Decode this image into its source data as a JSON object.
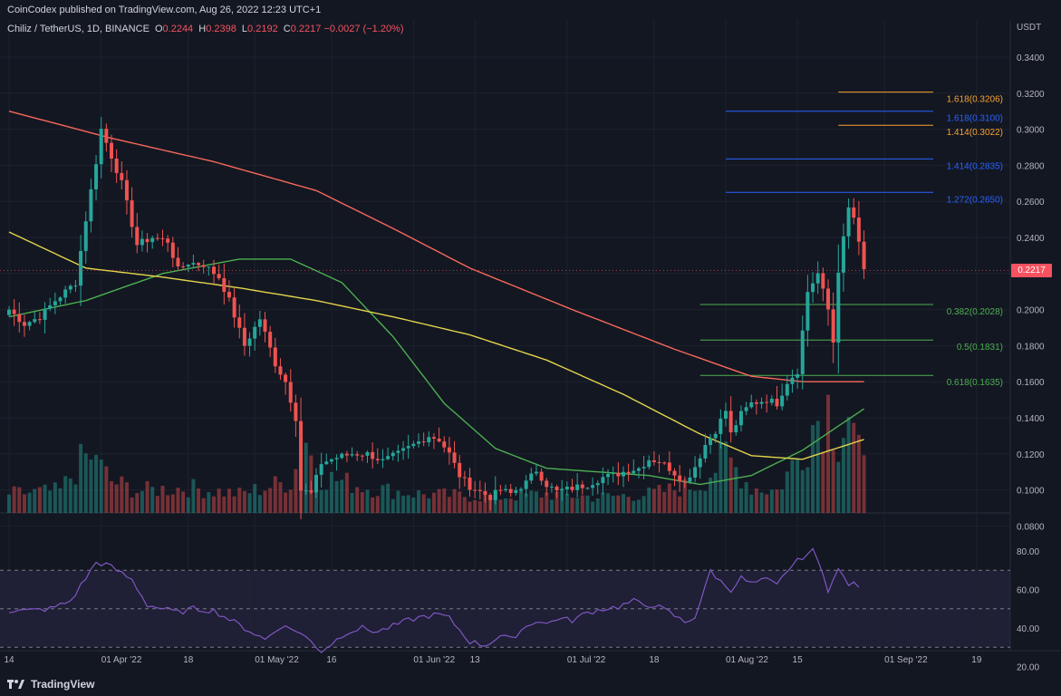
{
  "header": {
    "published": "CoinCodex published on TradingView.com, Aug 26, 2022 12:23 UTC+1"
  },
  "legend": {
    "symbol": "Chiliz / TetherUS, 1D, BINANCE",
    "open_label": "O",
    "open": "0.2244",
    "high_label": "H",
    "high": "0.2398",
    "low_label": "L",
    "low": "0.2192",
    "close_label": "C",
    "close": "0.2217",
    "change": "−0.0027 (−1.20%)"
  },
  "footer": {
    "brand": "TradingView"
  },
  "colors": {
    "up": "#26a69a",
    "down": "#ef5350",
    "ma200": "#f7685b",
    "ma100": "#e3d44c",
    "ma50": "#4caf50",
    "rsi": "#7e57c2",
    "fib_blue": "#2962ff",
    "fib_orange": "#f7a233",
    "fib_green": "#4caf50"
  },
  "chart_data": {
    "type": "candlestick",
    "currency": "USDT",
    "last_price": "0.2217",
    "price_ticks": [
      "0.3400",
      "0.3200",
      "0.3000",
      "0.2800",
      "0.2600",
      "0.2400",
      "0.2200",
      "0.2000",
      "0.1800",
      "0.1600",
      "0.1400",
      "0.1200",
      "0.1000",
      "0.0800"
    ],
    "ylim": [
      0.08,
      0.34
    ],
    "rsi_ticks": [
      "80.00",
      "60.00",
      "40.00",
      "20.00"
    ],
    "rsi_levels": [
      70,
      50,
      30
    ],
    "x_ticks": [
      {
        "label": "14",
        "day": 0
      },
      {
        "label": "01 Apr '22",
        "day": 18
      },
      {
        "label": "18",
        "day": 35
      },
      {
        "label": "01 May '22",
        "day": 48
      },
      {
        "label": "16",
        "day": 63
      },
      {
        "label": "01 Jun '22",
        "day": 79
      },
      {
        "label": "13",
        "day": 91
      },
      {
        "label": "01 Jul '22",
        "day": 109
      },
      {
        "label": "18",
        "day": 126
      },
      {
        "label": "01 Aug '22",
        "day": 140
      },
      {
        "label": "15",
        "day": 154
      },
      {
        "label": "01 Sep '22",
        "day": 171
      },
      {
        "label": "19",
        "day": 189
      }
    ],
    "fib_levels": [
      {
        "label": "1.618(0.3206)",
        "value": 0.3206,
        "color": "orange",
        "start_day": 162
      },
      {
        "label": "1.618(0.3100)",
        "value": 0.31,
        "color": "blue",
        "start_day": 140
      },
      {
        "label": "1.414(0.3022)",
        "value": 0.3022,
        "color": "orange",
        "start_day": 162
      },
      {
        "label": "1.414(0.2835)",
        "value": 0.2835,
        "color": "blue",
        "start_day": 140
      },
      {
        "label": "1.272(0.2650)",
        "value": 0.265,
        "color": "blue",
        "start_day": 140
      },
      {
        "label": "0.382(0.2028)",
        "value": 0.2028,
        "color": "green",
        "start_day": 135
      },
      {
        "label": "0.5(0.1831)",
        "value": 0.1831,
        "color": "green",
        "start_day": 135
      },
      {
        "label": "0.618(0.1635)",
        "value": 0.1635,
        "color": "green",
        "start_day": 135
      }
    ],
    "close_anchors": [
      [
        0,
        0.2
      ],
      [
        3,
        0.192
      ],
      [
        6,
        0.196
      ],
      [
        9,
        0.205
      ],
      [
        11,
        0.21
      ],
      [
        13,
        0.215
      ],
      [
        15,
        0.25
      ],
      [
        17,
        0.282
      ],
      [
        18,
        0.3
      ],
      [
        20,
        0.285
      ],
      [
        22,
        0.27
      ],
      [
        25,
        0.236
      ],
      [
        28,
        0.24
      ],
      [
        31,
        0.238
      ],
      [
        33,
        0.222
      ],
      [
        35,
        0.226
      ],
      [
        38,
        0.225
      ],
      [
        41,
        0.218
      ],
      [
        43,
        0.205
      ],
      [
        46,
        0.18
      ],
      [
        49,
        0.195
      ],
      [
        52,
        0.17
      ],
      [
        54,
        0.16
      ],
      [
        56,
        0.14
      ],
      [
        57,
        0.1
      ],
      [
        59,
        0.098
      ],
      [
        61,
        0.115
      ],
      [
        64,
        0.118
      ],
      [
        67,
        0.12
      ],
      [
        70,
        0.12
      ],
      [
        73,
        0.116
      ],
      [
        76,
        0.12
      ],
      [
        79,
        0.125
      ],
      [
        82,
        0.13
      ],
      [
        84,
        0.128
      ],
      [
        86,
        0.12
      ],
      [
        88,
        0.108
      ],
      [
        90,
        0.102
      ],
      [
        92,
        0.099
      ],
      [
        94,
        0.096
      ],
      [
        96,
        0.1
      ],
      [
        98,
        0.098
      ],
      [
        101,
        0.104
      ],
      [
        103,
        0.111
      ],
      [
        105,
        0.103
      ],
      [
        107,
        0.099
      ],
      [
        110,
        0.101
      ],
      [
        113,
        0.103
      ],
      [
        116,
        0.107
      ],
      [
        118,
        0.108
      ],
      [
        121,
        0.111
      ],
      [
        123,
        0.112
      ],
      [
        125,
        0.117
      ],
      [
        127,
        0.116
      ],
      [
        129,
        0.112
      ],
      [
        132,
        0.104
      ],
      [
        134,
        0.113
      ],
      [
        136,
        0.125
      ],
      [
        138,
        0.133
      ],
      [
        140,
        0.144
      ],
      [
        141,
        0.131
      ],
      [
        143,
        0.142
      ],
      [
        145,
        0.148
      ],
      [
        148,
        0.15
      ],
      [
        150,
        0.148
      ],
      [
        152,
        0.16
      ],
      [
        154,
        0.166
      ],
      [
        156,
        0.21
      ],
      [
        158,
        0.22
      ],
      [
        160,
        0.2
      ],
      [
        161,
        0.182
      ],
      [
        162,
        0.222
      ],
      [
        164,
        0.256
      ],
      [
        165,
        0.251
      ],
      [
        166,
        0.236
      ],
      [
        167,
        0.2217
      ]
    ],
    "ma200_anchors": [
      [
        0,
        0.31
      ],
      [
        20,
        0.295
      ],
      [
        40,
        0.282
      ],
      [
        60,
        0.266
      ],
      [
        75,
        0.245
      ],
      [
        90,
        0.223
      ],
      [
        110,
        0.2
      ],
      [
        130,
        0.178
      ],
      [
        145,
        0.163
      ],
      [
        155,
        0.16
      ],
      [
        167,
        0.16
      ]
    ],
    "ma100_anchors": [
      [
        0,
        0.243
      ],
      [
        15,
        0.223
      ],
      [
        30,
        0.218
      ],
      [
        45,
        0.212
      ],
      [
        60,
        0.205
      ],
      [
        75,
        0.196
      ],
      [
        90,
        0.186
      ],
      [
        105,
        0.172
      ],
      [
        120,
        0.153
      ],
      [
        135,
        0.131
      ],
      [
        145,
        0.119
      ],
      [
        155,
        0.117
      ],
      [
        167,
        0.128
      ]
    ],
    "ma50_anchors": [
      [
        0,
        0.196
      ],
      [
        15,
        0.205
      ],
      [
        30,
        0.22
      ],
      [
        45,
        0.228
      ],
      [
        55,
        0.228
      ],
      [
        65,
        0.215
      ],
      [
        75,
        0.185
      ],
      [
        85,
        0.148
      ],
      [
        95,
        0.123
      ],
      [
        105,
        0.112
      ],
      [
        115,
        0.11
      ],
      [
        125,
        0.108
      ],
      [
        135,
        0.103
      ],
      [
        145,
        0.108
      ],
      [
        155,
        0.122
      ],
      [
        167,
        0.145
      ]
    ],
    "rsi_anchors": [
      [
        0,
        49
      ],
      [
        4,
        49
      ],
      [
        8,
        50
      ],
      [
        12,
        54
      ],
      [
        15,
        66
      ],
      [
        17,
        74
      ],
      [
        19,
        73
      ],
      [
        21,
        70
      ],
      [
        24,
        65
      ],
      [
        27,
        52
      ],
      [
        30,
        50
      ],
      [
        33,
        48
      ],
      [
        36,
        50
      ],
      [
        40,
        49
      ],
      [
        44,
        43
      ],
      [
        48,
        37
      ],
      [
        50,
        34
      ],
      [
        53,
        41
      ],
      [
        56,
        39
      ],
      [
        59,
        33
      ],
      [
        61,
        28
      ],
      [
        63,
        32
      ],
      [
        66,
        38
      ],
      [
        69,
        40
      ],
      [
        72,
        38
      ],
      [
        75,
        41
      ],
      [
        78,
        44
      ],
      [
        81,
        46
      ],
      [
        84,
        47
      ],
      [
        86,
        45
      ],
      [
        88,
        39
      ],
      [
        90,
        33
      ],
      [
        93,
        31
      ],
      [
        96,
        36
      ],
      [
        98,
        34
      ],
      [
        100,
        39
      ],
      [
        103,
        44
      ],
      [
        105,
        42
      ],
      [
        107,
        45
      ],
      [
        110,
        44
      ],
      [
        113,
        48
      ],
      [
        116,
        50
      ],
      [
        119,
        51
      ],
      [
        122,
        54
      ],
      [
        124,
        52
      ],
      [
        126,
        52
      ],
      [
        129,
        48
      ],
      [
        132,
        43
      ],
      [
        134,
        46
      ],
      [
        136,
        61
      ],
      [
        137,
        70
      ],
      [
        139,
        64
      ],
      [
        141,
        60
      ],
      [
        143,
        66
      ],
      [
        145,
        63
      ],
      [
        148,
        65
      ],
      [
        150,
        62
      ],
      [
        152,
        70
      ],
      [
        155,
        77
      ],
      [
        157,
        80
      ],
      [
        159,
        69
      ],
      [
        160,
        60
      ],
      [
        162,
        70
      ],
      [
        164,
        63
      ],
      [
        166,
        62
      ]
    ],
    "vol_anchors": [
      [
        0,
        0.3
      ],
      [
        10,
        0.35
      ],
      [
        15,
        0.9
      ],
      [
        16,
        0.75
      ],
      [
        17,
        1.0
      ],
      [
        18,
        0.7
      ],
      [
        20,
        0.5
      ],
      [
        25,
        0.35
      ],
      [
        35,
        0.4
      ],
      [
        45,
        0.3
      ],
      [
        55,
        0.5
      ],
      [
        57,
        0.9
      ],
      [
        58,
        1.2
      ],
      [
        60,
        0.6
      ],
      [
        70,
        0.4
      ],
      [
        80,
        0.3
      ],
      [
        95,
        0.25
      ],
      [
        105,
        0.3
      ],
      [
        115,
        0.25
      ],
      [
        125,
        0.3
      ],
      [
        135,
        0.45
      ],
      [
        140,
        0.9
      ],
      [
        145,
        0.4
      ],
      [
        150,
        0.35
      ],
      [
        155,
        1.0
      ],
      [
        157,
        1.4
      ],
      [
        160,
        1.7
      ],
      [
        162,
        1.2
      ],
      [
        164,
        1.6
      ],
      [
        166,
        0.9
      ],
      [
        167,
        0.7
      ]
    ]
  }
}
